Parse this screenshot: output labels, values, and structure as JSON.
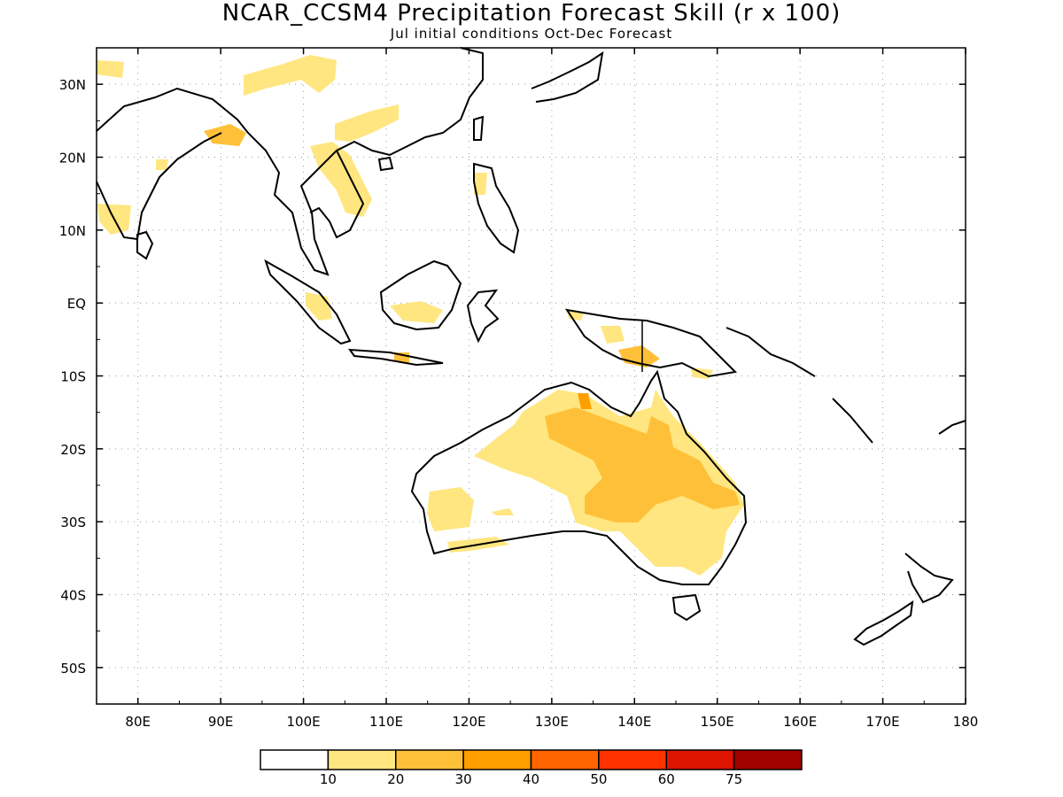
{
  "title": "NCAR_CCSM4 Precipitation Forecast Skill (r x 100)",
  "subtitle": "Jul initial conditions  Oct-Dec Forecast",
  "map": {
    "region": "Indian Ocean - Maritime Continent - Australia - West Pacific",
    "lon_range": [
      75,
      180
    ],
    "lat_range": [
      -55,
      35
    ],
    "gridlines": "dotted",
    "lat_labels": [
      "30N",
      "20N",
      "10N",
      "EQ",
      "10S",
      "20S",
      "30S",
      "40S",
      "50S"
    ],
    "lon_labels": [
      "80E",
      "90E",
      "100E",
      "110E",
      "120E",
      "130E",
      "140E",
      "150E",
      "160E",
      "170E",
      "180"
    ]
  },
  "colorbar": {
    "colors": [
      "#ffffff",
      "#ffe680",
      "#ffc039",
      "#ffa000",
      "#ff6400",
      "#ff3200",
      "#dc1400",
      "#a00000"
    ],
    "labels": [
      "10",
      "20",
      "30",
      "40",
      "50",
      "60",
      "75"
    ]
  }
}
